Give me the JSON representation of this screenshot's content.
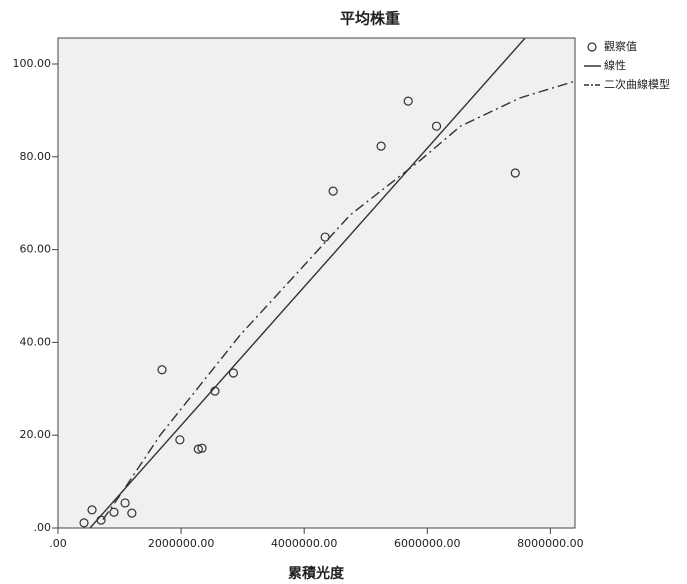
{
  "chart_data": {
    "type": "scatter",
    "title": "平均株重",
    "x_label": "累積光度",
    "xlim": [
      0,
      8400000
    ],
    "ylim": [
      0,
      105.6
    ],
    "xticks": [
      {
        "value": 0,
        "label": ".00"
      },
      {
        "value": 2000000,
        "label": "2000000.00"
      },
      {
        "value": 4000000,
        "label": "4000000.00"
      },
      {
        "value": 6000000,
        "label": "6000000.00"
      },
      {
        "value": 8000000,
        "label": "8000000.00"
      }
    ],
    "yticks": [
      {
        "value": 0,
        "label": ".00"
      },
      {
        "value": 20,
        "label": "20.00"
      },
      {
        "value": 40,
        "label": "40.00"
      },
      {
        "value": 60,
        "label": "60.00"
      },
      {
        "value": 80,
        "label": "80.00"
      },
      {
        "value": 100,
        "label": "100.00"
      }
    ],
    "background": "#f0f0f0",
    "series": [
      {
        "name": "觀察值",
        "type": "scatter",
        "color": "#333333",
        "x": [
          423000,
          553000,
          700000,
          910000,
          1090000,
          1200000,
          1690000,
          1980000,
          2280000,
          2340000,
          2550000,
          2850000,
          4340000,
          4470000,
          5250000,
          5690000,
          6150000,
          7430000
        ],
        "values": [
          1.1,
          3.9,
          1.7,
          3.4,
          5.4,
          3.2,
          34.1,
          19.0,
          17.0,
          17.2,
          29.5,
          33.4,
          62.7,
          72.6,
          82.3,
          92.0,
          86.6,
          76.5
        ]
      },
      {
        "name": "線性",
        "type": "line",
        "style": "solid",
        "color": "#333333",
        "x": [
          520000,
          7590000
        ],
        "values": [
          0,
          105.6
        ]
      },
      {
        "name": "二次曲線模型",
        "type": "line",
        "style": "dash-dot",
        "color": "#333333",
        "x": [
          730000,
          1010000,
          1660000,
          2310000,
          2960000,
          3930000,
          4750000,
          5890000,
          6540000,
          7510000,
          8400000
        ],
        "values": [
          1.8,
          7.1,
          20.0,
          30.8,
          41.6,
          55.6,
          67.5,
          79.3,
          86.6,
          92.7,
          96.3
        ]
      }
    ]
  }
}
